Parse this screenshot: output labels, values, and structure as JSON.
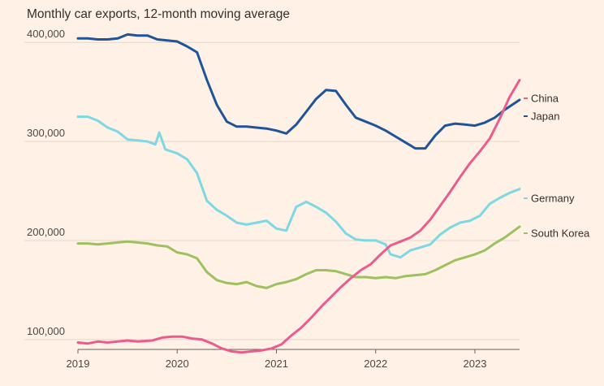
{
  "chart_data": {
    "type": "line",
    "title": "Monthly car exports, 12-month moving average",
    "xlabel": "",
    "ylabel": "",
    "xlim": [
      2019.0,
      2023.45
    ],
    "ylim": [
      90000,
      410000
    ],
    "yticks": [
      100000,
      200000,
      300000,
      400000
    ],
    "ytick_labels": [
      "100,000",
      "200,000",
      "300,000",
      "400,000"
    ],
    "xticks": [
      2019,
      2020,
      2021,
      2022,
      2023
    ],
    "xtick_labels": [
      "2019",
      "2020",
      "2021",
      "2022",
      "2023"
    ],
    "grid": true,
    "series": [
      {
        "name": "China",
        "color": "#E95D8C",
        "x": [
          2019.0,
          2019.1,
          2019.2,
          2019.3,
          2019.4,
          2019.5,
          2019.6,
          2019.75,
          2019.85,
          2019.95,
          2020.05,
          2020.15,
          2020.25,
          2020.35,
          2020.45,
          2020.55,
          2020.65,
          2020.75,
          2020.85,
          2020.95,
          2021.05,
          2021.15,
          2021.25,
          2021.35,
          2021.45,
          2021.55,
          2021.65,
          2021.75,
          2021.85,
          2021.95,
          2022.05,
          2022.15,
          2022.25,
          2022.35,
          2022.45,
          2022.55,
          2022.65,
          2022.75,
          2022.85,
          2022.95,
          2023.05,
          2023.15,
          2023.25,
          2023.35,
          2023.45
        ],
        "values": [
          97000,
          96000,
          98000,
          97000,
          98000,
          99000,
          98000,
          99000,
          102000,
          103000,
          103000,
          101000,
          100000,
          96000,
          91000,
          88000,
          87000,
          88000,
          89000,
          91000,
          95000,
          104000,
          112000,
          122000,
          133000,
          143000,
          153000,
          162000,
          170000,
          176000,
          186000,
          195000,
          199000,
          203000,
          210000,
          221000,
          235000,
          249000,
          264000,
          278000,
          290000,
          303000,
          323000,
          345000,
          362000
        ]
      },
      {
        "name": "Japan",
        "color": "#1F5499",
        "x": [
          2019.0,
          2019.1,
          2019.2,
          2019.3,
          2019.4,
          2019.5,
          2019.6,
          2019.7,
          2019.8,
          2019.9,
          2020.0,
          2020.1,
          2020.2,
          2020.3,
          2020.4,
          2020.5,
          2020.6,
          2020.7,
          2020.8,
          2020.9,
          2021.0,
          2021.1,
          2021.2,
          2021.3,
          2021.4,
          2021.5,
          2021.6,
          2021.7,
          2021.8,
          2021.9,
          2022.0,
          2022.1,
          2022.2,
          2022.3,
          2022.4,
          2022.5,
          2022.6,
          2022.7,
          2022.8,
          2022.9,
          2023.0,
          2023.1,
          2023.2,
          2023.3,
          2023.45
        ],
        "values": [
          404000,
          404000,
          403000,
          403000,
          404000,
          408000,
          407000,
          407000,
          403000,
          402000,
          401000,
          396000,
          390000,
          362000,
          337000,
          320000,
          315000,
          315000,
          314000,
          313000,
          311000,
          308000,
          317000,
          330000,
          343000,
          352000,
          351000,
          337000,
          324000,
          320000,
          316000,
          311000,
          305000,
          299000,
          293000,
          293000,
          306000,
          316000,
          318000,
          317000,
          316000,
          319000,
          324000,
          332000,
          342000
        ]
      },
      {
        "name": "Germany",
        "color": "#7DD8E3",
        "x": [
          2019.0,
          2019.1,
          2019.2,
          2019.3,
          2019.4,
          2019.5,
          2019.6,
          2019.7,
          2019.78,
          2019.82,
          2019.88,
          2020.0,
          2020.1,
          2020.2,
          2020.3,
          2020.4,
          2020.5,
          2020.6,
          2020.7,
          2020.8,
          2020.9,
          2021.0,
          2021.1,
          2021.2,
          2021.3,
          2021.4,
          2021.5,
          2021.6,
          2021.7,
          2021.8,
          2021.9,
          2022.0,
          2022.1,
          2022.15,
          2022.25,
          2022.35,
          2022.45,
          2022.55,
          2022.65,
          2022.75,
          2022.85,
          2022.95,
          2023.05,
          2023.15,
          2023.25,
          2023.35,
          2023.45
        ],
        "values": [
          325000,
          325000,
          321000,
          314000,
          310000,
          302000,
          301000,
          300000,
          297000,
          309000,
          292000,
          288000,
          282000,
          268000,
          240000,
          231000,
          225000,
          218000,
          216000,
          218000,
          220000,
          212000,
          210000,
          234000,
          239000,
          234000,
          228000,
          219000,
          207000,
          201000,
          200000,
          200000,
          196000,
          186000,
          183000,
          190000,
          193000,
          196000,
          206000,
          213000,
          218000,
          220000,
          225000,
          237000,
          243000,
          248000,
          252000
        ]
      },
      {
        "name": "South Korea",
        "color": "#9CC160",
        "x": [
          2019.0,
          2019.1,
          2019.2,
          2019.3,
          2019.4,
          2019.5,
          2019.6,
          2019.7,
          2019.8,
          2019.9,
          2020.0,
          2020.1,
          2020.2,
          2020.3,
          2020.4,
          2020.5,
          2020.6,
          2020.7,
          2020.8,
          2020.9,
          2021.0,
          2021.1,
          2021.2,
          2021.3,
          2021.4,
          2021.5,
          2021.6,
          2021.7,
          2021.8,
          2021.9,
          2022.0,
          2022.1,
          2022.2,
          2022.3,
          2022.4,
          2022.5,
          2022.6,
          2022.7,
          2022.8,
          2022.9,
          2023.0,
          2023.1,
          2023.2,
          2023.3,
          2023.45
        ],
        "values": [
          197000,
          197000,
          196000,
          197000,
          198000,
          199000,
          198000,
          197000,
          195000,
          194000,
          188000,
          186000,
          182000,
          168000,
          160000,
          157000,
          156000,
          158000,
          154000,
          152000,
          156000,
          158000,
          161000,
          166000,
          170000,
          170000,
          169000,
          166000,
          163000,
          163000,
          162000,
          163000,
          162000,
          164000,
          165000,
          166000,
          170000,
          175000,
          180000,
          183000,
          186000,
          190000,
          197000,
          203000,
          214000
        ]
      }
    ]
  }
}
